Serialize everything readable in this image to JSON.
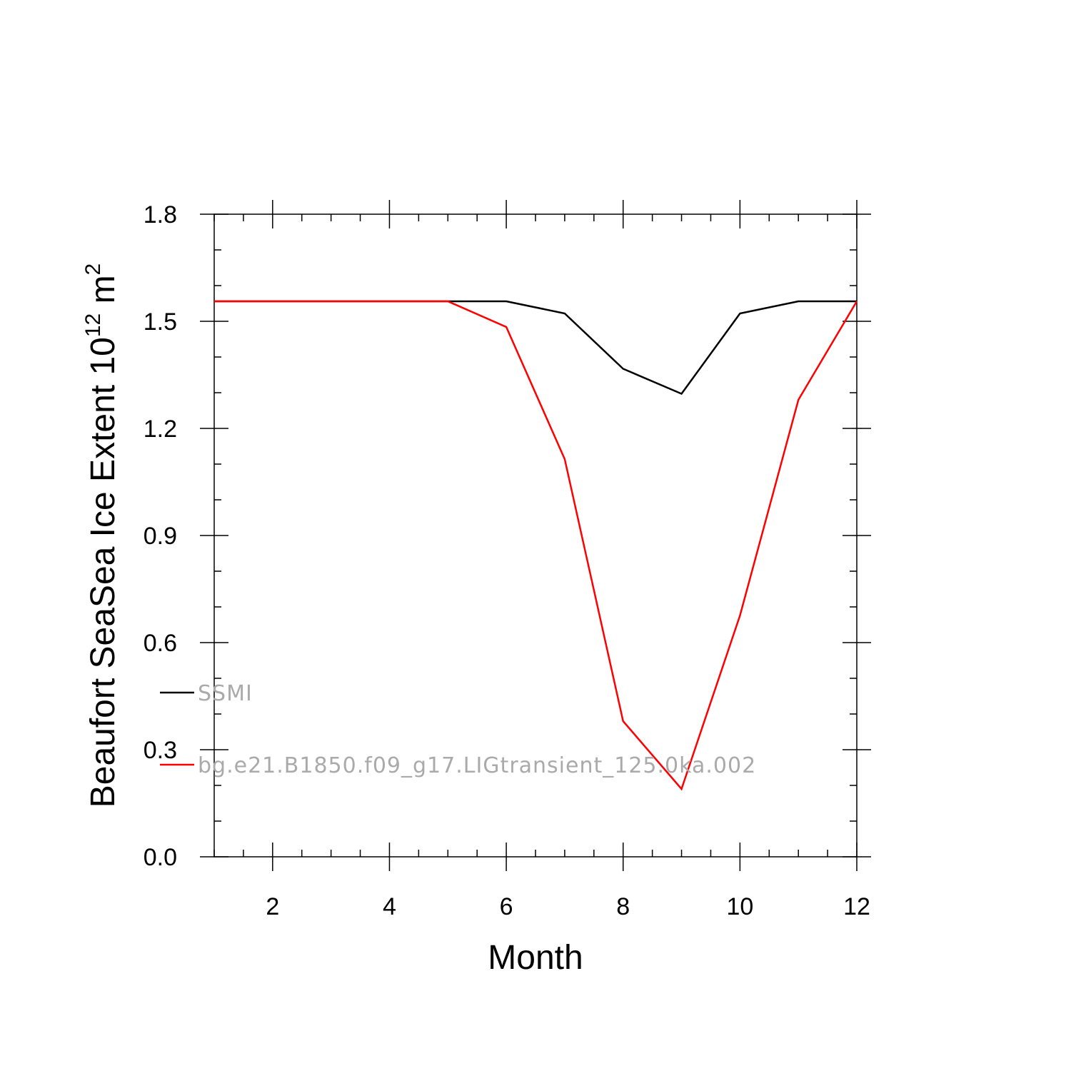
{
  "chart_data": {
    "type": "line",
    "xlabel": "Month",
    "ylabel": {
      "prefix": "Beaufort SeaSea Ice Extent 10",
      "exp1": "12",
      "mid": " m",
      "exp2": "2"
    },
    "xlim": [
      1,
      12
    ],
    "ylim": [
      0.0,
      1.8
    ],
    "xticks": [
      2,
      4,
      6,
      8,
      10,
      12
    ],
    "yticks": [
      "0.0",
      "0.3",
      "0.6",
      "0.9",
      "1.2",
      "1.5",
      "1.8"
    ],
    "x": [
      1,
      2,
      3,
      4,
      5,
      6,
      7,
      8,
      9,
      10,
      11,
      12
    ],
    "series": [
      {
        "name": "SSMI",
        "color": "#000000",
        "values": [
          1.556,
          1.556,
          1.556,
          1.556,
          1.556,
          1.556,
          1.522,
          1.367,
          1.297,
          1.522,
          1.556,
          1.556
        ]
      },
      {
        "name": "bg.e21.B1850.f09_g17.LIGtransient_125.0ka.002",
        "color": "#ff0000",
        "values": [
          1.556,
          1.556,
          1.556,
          1.556,
          1.556,
          1.484,
          1.114,
          0.38,
          0.19,
          0.676,
          1.28,
          1.556
        ]
      }
    ],
    "legend_position": "lower-left",
    "grid": false
  }
}
